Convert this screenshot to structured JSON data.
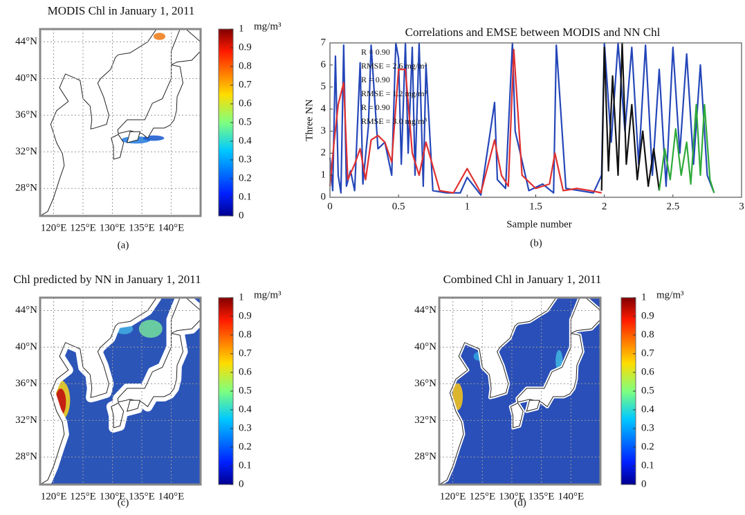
{
  "chart_data": [
    {
      "type": "map",
      "title": "MODIS Chl in January 1, 2011",
      "caption": "(a)",
      "xlim": [
        117.7,
        145
      ],
      "ylim": [
        25,
        45.4
      ],
      "xticks": [
        {
          "value": 120,
          "label": "120°E"
        },
        {
          "value": 125,
          "label": "125°E"
        },
        {
          "value": 130,
          "label": "130°E"
        },
        {
          "value": 135,
          "label": "135°E"
        },
        {
          "value": 140,
          "label": "140°E"
        }
      ],
      "yticks": [
        {
          "value": 28,
          "label": "28°N"
        },
        {
          "value": 32,
          "label": "32°N"
        },
        {
          "value": 36,
          "label": "36°N"
        },
        {
          "value": 40,
          "label": "40°N"
        },
        {
          "value": 44,
          "label": "44°N"
        }
      ],
      "clim": [
        0,
        1
      ],
      "cticks": [
        0,
        0.1,
        0.2,
        0.3,
        0.4,
        0.5,
        0.6,
        0.7,
        0.8,
        0.9,
        1
      ],
      "unit": "mg/m³"
    },
    {
      "type": "line",
      "title": "Correlations and EMSE between MODIS and NN Chl",
      "caption": "(b)",
      "xlabel": "Sample number",
      "ylabel": "Three NN",
      "xlim": [
        0,
        3
      ],
      "xticks": [
        0,
        0.5,
        1,
        1.5,
        2,
        2.5,
        3
      ],
      "ylim": [
        0,
        7
      ],
      "yticks": [
        0,
        1,
        2,
        3,
        4,
        5,
        6,
        7
      ],
      "annotations": [
        {
          "text": "R = 0.90",
          "color": "#e03030"
        },
        {
          "text": "RMSE = 2.6 mg/m³",
          "color": "#e03030"
        },
        {
          "text": "R = 0.90",
          "color": "#111111"
        },
        {
          "text": "RMSE = 1.2 mg/m³",
          "color": "#111111"
        },
        {
          "text": "R = 0.90",
          "color": "#2eaa3a"
        },
        {
          "text": "RMSE = 3.0 mg/m³",
          "color": "#2eaa3a"
        }
      ],
      "series": [
        {
          "color": "#2446b8",
          "x": [
            0,
            0.02,
            0.04,
            0.06,
            0.08,
            0.1,
            0.12,
            0.15,
            0.18,
            0.22,
            0.24,
            0.28,
            0.3,
            0.35,
            0.4,
            0.45,
            0.48,
            0.5,
            0.52,
            0.55,
            0.57,
            0.6,
            0.62,
            0.65,
            0.68,
            0.7,
            0.75,
            0.85,
            0.95,
            1.0,
            1.1,
            1.2,
            1.22,
            1.28,
            1.33,
            1.35,
            1.45,
            1.55,
            1.63,
            1.65,
            1.72,
            1.82,
            1.92,
            1.98,
            2.0,
            2.05,
            2.1,
            2.15,
            2.2,
            2.25,
            2.3,
            2.35,
            2.4,
            2.45,
            2.5,
            2.55,
            2.6,
            2.65,
            2.7,
            2.75,
            2.8
          ],
          "values": [
            1.8,
            0.3,
            6.4,
            1.0,
            0.2,
            6.9,
            0.5,
            1.2,
            0.3,
            6.1,
            0.6,
            3.2,
            6.9,
            2.2,
            2.5,
            1.0,
            7.0,
            6.3,
            1.5,
            7.0,
            2.0,
            6.8,
            1.0,
            7.0,
            0.5,
            6.0,
            0.3,
            0.2,
            0.2,
            0.9,
            0.1,
            4.3,
            0.8,
            0.4,
            7.0,
            3.0,
            0.3,
            0.6,
            0.2,
            6.9,
            0.4,
            0.3,
            0.2,
            1.0,
            7.0,
            2.5,
            7.0,
            3.0,
            6.8,
            1.5,
            6.9,
            1.0,
            5.8,
            0.5,
            6.8,
            2.0,
            6.5,
            1.5,
            6.0,
            1.0,
            0.2
          ]
        },
        {
          "color": "#e03030",
          "x": [
            0,
            0.03,
            0.06,
            0.1,
            0.13,
            0.18,
            0.22,
            0.26,
            0.3,
            0.35,
            0.4,
            0.45,
            0.5,
            0.55,
            0.6,
            0.65,
            0.7,
            0.8,
            0.9,
            1.0,
            1.1,
            1.2,
            1.25,
            1.3,
            1.34,
            1.4,
            1.5,
            1.6,
            1.64,
            1.7,
            1.8,
            1.9,
            1.98
          ],
          "values": [
            0.5,
            2.5,
            4.2,
            5.2,
            0.8,
            1.5,
            2.2,
            0.8,
            2.6,
            2.8,
            2.5,
            1.6,
            5.8,
            5.8,
            2.0,
            1.0,
            2.5,
            0.3,
            0.2,
            1.3,
            0.2,
            2.6,
            1.0,
            0.5,
            6.7,
            1.0,
            0.4,
            0.6,
            2.0,
            0.3,
            0.4,
            0.3,
            0.2
          ]
        },
        {
          "color": "#111111",
          "x": [
            1.98,
            2.0,
            2.03,
            2.06,
            2.1,
            2.13,
            2.16,
            2.2,
            2.24,
            2.28,
            2.32,
            2.36,
            2.4
          ],
          "values": [
            0.3,
            6.8,
            1.2,
            5.5,
            1.0,
            7.0,
            1.5,
            4.2,
            0.8,
            3.0,
            0.5,
            2.2,
            0.3
          ]
        },
        {
          "color": "#2eaa3a",
          "x": [
            2.4,
            2.44,
            2.48,
            2.52,
            2.56,
            2.6,
            2.63,
            2.67,
            2.7,
            2.73,
            2.77,
            2.8
          ],
          "values": [
            0.3,
            2.2,
            0.8,
            3.1,
            1.0,
            2.5,
            0.6,
            4.2,
            1.0,
            4.2,
            0.8,
            0.2
          ]
        }
      ]
    },
    {
      "type": "map",
      "title": "Chl predicted by NN in January 1, 2011",
      "caption": "(c)",
      "xlim": [
        117.7,
        145
      ],
      "ylim": [
        25,
        45.4
      ],
      "xticks": [
        {
          "value": 120,
          "label": "120°E"
        },
        {
          "value": 125,
          "label": "125°E"
        },
        {
          "value": 130,
          "label": "130°E"
        },
        {
          "value": 135,
          "label": "135°E"
        },
        {
          "value": 140,
          "label": "140°E"
        }
      ],
      "yticks": [
        {
          "value": 28,
          "label": "28°N"
        },
        {
          "value": 32,
          "label": "32°N"
        },
        {
          "value": 36,
          "label": "36°N"
        },
        {
          "value": 40,
          "label": "40°N"
        },
        {
          "value": 44,
          "label": "44°N"
        }
      ],
      "clim": [
        0,
        1
      ],
      "cticks": [
        0,
        0.1,
        0.2,
        0.3,
        0.4,
        0.5,
        0.6,
        0.7,
        0.8,
        0.9,
        1
      ],
      "unit": "mg/m³"
    },
    {
      "type": "map",
      "title": "Combined Chl in January 1, 2011",
      "caption": "(d)",
      "xlim": [
        117.7,
        145
      ],
      "ylim": [
        25,
        45.4
      ],
      "xticks": [
        {
          "value": 120,
          "label": "120°E"
        },
        {
          "value": 125,
          "label": "125°E"
        },
        {
          "value": 130,
          "label": "130°E"
        },
        {
          "value": 135,
          "label": "135°E"
        },
        {
          "value": 140,
          "label": "140°E"
        }
      ],
      "yticks": [
        {
          "value": 28,
          "label": "28°N"
        },
        {
          "value": 32,
          "label": "32°N"
        },
        {
          "value": 36,
          "label": "36°N"
        },
        {
          "value": 40,
          "label": "40°N"
        },
        {
          "value": 44,
          "label": "44°N"
        }
      ],
      "clim": [
        0,
        1
      ],
      "cticks": [
        0,
        0.1,
        0.2,
        0.3,
        0.4,
        0.5,
        0.6,
        0.7,
        0.8,
        0.9,
        1
      ],
      "unit": "mg/m³"
    }
  ]
}
